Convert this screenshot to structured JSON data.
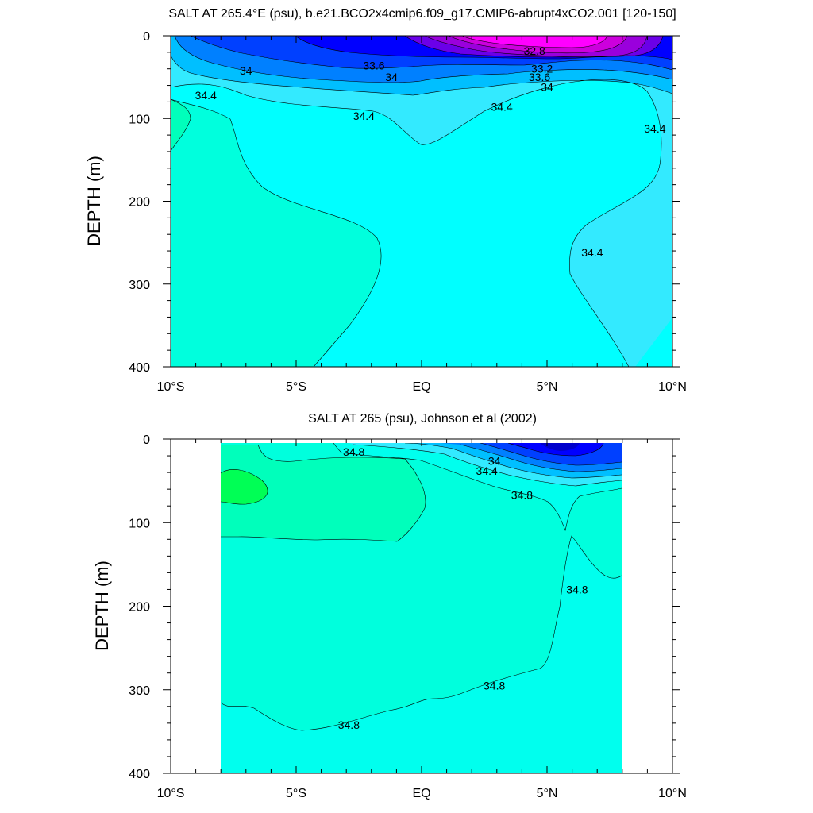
{
  "chart_data": [
    {
      "type": "contour",
      "title": "SALT AT 265.4°E (psu), b.e21.BCO2x4cmip6.f09_g17.CMIP6-abrupt4xCO2.001 [120-150]",
      "ylabel": "DEPTH (m)",
      "xlabel": "",
      "x_ticks": [
        "10°S",
        "5°S",
        "EQ",
        "5°N",
        "10°N"
      ],
      "x_tick_values": [
        -10,
        -5,
        0,
        5,
        10
      ],
      "y_ticks": [
        "0",
        "100",
        "200",
        "300",
        "400"
      ],
      "y_tick_values": [
        0,
        100,
        200,
        300,
        400
      ],
      "xlim": [
        -10,
        10
      ],
      "ylim": [
        400,
        0
      ],
      "y_reversed": true,
      "contour_labels": [
        {
          "text": "32.8",
          "x": 4.5,
          "y": 18
        },
        {
          "text": "33.6",
          "x": -1.9,
          "y": 36
        },
        {
          "text": "33.2",
          "x": 4.8,
          "y": 40
        },
        {
          "text": "33.6",
          "x": 4.7,
          "y": 50
        },
        {
          "text": "34",
          "x": 5.0,
          "y": 62
        },
        {
          "text": "34",
          "x": -7.0,
          "y": 42
        },
        {
          "text": "34",
          "x": -1.2,
          "y": 50
        },
        {
          "text": "34.4",
          "x": -8.6,
          "y": 72
        },
        {
          "text": "34.4",
          "x": -2.3,
          "y": 97
        },
        {
          "text": "34.4",
          "x": 3.2,
          "y": 86
        },
        {
          "text": "34.4",
          "x": 9.3,
          "y": 112
        },
        {
          "text": "34.4",
          "x": 6.8,
          "y": 262
        }
      ]
    },
    {
      "type": "contour",
      "title": "SALT AT 265 (psu), Johnson et al (2002)",
      "ylabel": "DEPTH (m)",
      "xlabel": "",
      "x_ticks": [
        "10°S",
        "5°S",
        "EQ",
        "5°N",
        "10°N"
      ],
      "x_tick_values": [
        -10,
        -5,
        0,
        5,
        10
      ],
      "y_ticks": [
        "0",
        "100",
        "200",
        "300",
        "400"
      ],
      "y_tick_values": [
        0,
        100,
        200,
        300,
        400
      ],
      "xlim": [
        -10,
        10
      ],
      "ylim": [
        400,
        0
      ],
      "y_reversed": true,
      "data_xrange": [
        -8,
        8
      ],
      "contour_labels": [
        {
          "text": "34.8",
          "x": -2.7,
          "y": 15
        },
        {
          "text": "34",
          "x": 2.9,
          "y": 26
        },
        {
          "text": "34.4",
          "x": 2.6,
          "y": 38
        },
        {
          "text": "34.8",
          "x": 4.0,
          "y": 67
        },
        {
          "text": "34.8",
          "x": 6.2,
          "y": 180
        },
        {
          "text": "34.8",
          "x": 2.9,
          "y": 295
        },
        {
          "text": "34.8",
          "x": -2.9,
          "y": 342
        }
      ]
    }
  ],
  "colors": {
    "background": "#ffffff",
    "salt_32_8": "#ff00ff",
    "salt_33_0": "#cc00dd",
    "salt_33_2": "#9a00dc",
    "salt_33_4": "#6b00e8",
    "salt_33_6": "#0000ff",
    "salt_33_8": "#0040ff",
    "salt_34_0": "#0080ff",
    "salt_34_2": "#00bfff",
    "salt_34_4": "#33eaff",
    "salt_34_6": "#00ffff",
    "salt_34_8": "#00ffdd",
    "salt_35_0": "#00ffbb",
    "salt_35_2": "#00ff9a",
    "salt_35_4": "#00ff55"
  }
}
